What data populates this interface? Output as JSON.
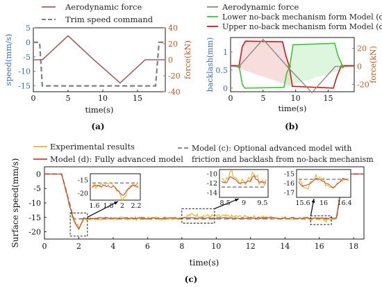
{
  "colors": {
    "speed": "#3d6db5",
    "force": "#b85a20",
    "aero": "#a06060",
    "trim": "#7f7f7f",
    "gray_model": "#8a8a8a",
    "green": "#38c838",
    "red": "#d41414",
    "exp": "#e0b820",
    "model_d": "#c04040",
    "model_c": "#8a8a8a"
  },
  "chart_data": [
    {
      "type": "line",
      "panel": "(a)",
      "legend": [
        "Aerodynamic force",
        "Trim speed command"
      ],
      "xlabel": "time(s)",
      "ylabel_left": "speed(mm/s)",
      "ylabel_right": "force(kN)",
      "xlim": [
        0,
        19
      ],
      "xticks": [
        "0",
        "5",
        "10",
        "15"
      ],
      "ylim_left": [
        -17,
        5
      ],
      "yticks_left": [
        "5",
        "0",
        "-5",
        "-10",
        "-15"
      ],
      "ylim_right": [
        -40,
        40
      ],
      "yticks_right": [
        "40",
        "20",
        "0",
        "-20",
        "-40"
      ],
      "series": [
        {
          "name": "Aerodynamic force",
          "axis": "right",
          "x": [
            0,
            1.3,
            5,
            8.7,
            12.5,
            16.1,
            17.5,
            19
          ],
          "y": [
            0,
            0,
            30,
            0,
            -29,
            0,
            0,
            0
          ]
        },
        {
          "name": "Trim speed command",
          "axis": "left",
          "x": [
            0,
            0.9,
            1.3,
            17.6,
            18.1,
            19
          ],
          "y": [
            0,
            0,
            -15,
            -15,
            0,
            0
          ]
        }
      ]
    },
    {
      "type": "line",
      "panel": "(b)",
      "legend": [
        "Aerodynamic force",
        "Lower no-back mechanism form Model (d)",
        "Upper no-back mechanism form Model (d)"
      ],
      "xlabel": "time(s)",
      "ylabel_left": "backlash(mm)",
      "ylabel_right": "force(kN)",
      "xlim": [
        0,
        19
      ],
      "xticks": [
        "0",
        "5",
        "10",
        "15"
      ],
      "ylim_left": [
        -0.1,
        1.4
      ],
      "yticks_left": [
        "1",
        "0.5",
        "0"
      ],
      "ylim_right": [
        -28,
        32
      ],
      "yticks_right": [
        "20",
        "0",
        "-20"
      ],
      "series": [
        {
          "name": "Aerodynamic force",
          "axis": "right",
          "x": [
            0,
            1.3,
            5,
            8.7,
            12.5,
            16.1,
            19
          ],
          "y": [
            0,
            0,
            30,
            0,
            -29,
            0,
            0
          ]
        },
        {
          "name": "Lower no-back mechanism form Model (d)",
          "axis": "left",
          "x": [
            0,
            1.3,
            1.8,
            2.2,
            8.2,
            8.6,
            9.1,
            9.6,
            16.0,
            16.5,
            17.2,
            19
          ],
          "y": [
            0.62,
            0.62,
            0.1,
            0.0,
            0.02,
            0.4,
            0.62,
            1.2,
            1.24,
            0.9,
            0.62,
            0.62
          ]
        },
        {
          "name": "Upper no-back mechanism form Model (d)",
          "axis": "left",
          "x": [
            0,
            1.3,
            1.8,
            2.3,
            8.0,
            8.5,
            9.0,
            9.5,
            15.8,
            16.3,
            17.0,
            19
          ],
          "y": [
            0.62,
            0.62,
            1.15,
            1.3,
            1.28,
            0.9,
            0.62,
            0.05,
            0.0,
            0.3,
            0.62,
            0.62
          ]
        }
      ]
    },
    {
      "type": "line",
      "panel": "(c)",
      "legend": [
        "Experimental results",
        "Model (d): Fully advanced model",
        "Model (c): Optional advanced model with friction and backlash from no-back mechanism"
      ],
      "xlabel": "time(s)",
      "ylabel": "Surface speed(mm/s)",
      "xlim": [
        0,
        18.6
      ],
      "xticks": [
        "0",
        "2",
        "4",
        "6",
        "8",
        "10",
        "12",
        "14",
        "16",
        "18"
      ],
      "ylim": [
        -22.5,
        2.5
      ],
      "yticks": [
        "0",
        "-5",
        "-10",
        "-15",
        "-20"
      ],
      "series": [
        {
          "name": "Experimental results",
          "x": [
            0,
            1.0,
            1.6,
            2.0,
            2.3,
            8.0,
            8.6,
            9.0,
            9.5,
            16.0,
            16.4,
            17.0,
            17.4,
            18.6
          ],
          "y": [
            0,
            0,
            -14.5,
            -18.5,
            -15.5,
            -15.2,
            -14,
            -14.5,
            -14.5,
            -15.5,
            -16.2,
            -15,
            0,
            0
          ]
        },
        {
          "name": "Model (d): Fully advanced model",
          "x": [
            0,
            1.0,
            1.7,
            2.0,
            2.3,
            17.0,
            17.4,
            18.6
          ],
          "y": [
            0,
            0,
            -16,
            -19,
            -15.3,
            -15.2,
            0,
            0
          ]
        },
        {
          "name": "Model (c): Optional advanced model with friction and backlash from no-back mechanism",
          "x": [
            0,
            1.0,
            1.7,
            17.0,
            17.4,
            18.6
          ],
          "y": [
            0,
            0,
            -15.5,
            -15.5,
            0,
            0
          ]
        }
      ],
      "insets": [
        {
          "xticks": [
            "1.6",
            "1.8",
            "2",
            "2.2"
          ],
          "yticks": [
            "-15",
            "-20"
          ]
        },
        {
          "xticks": [
            "8.5",
            "9",
            "9.5"
          ],
          "yticks": [
            "-10",
            "-12",
            "-14"
          ]
        },
        {
          "xticks": [
            "15.6",
            "16",
            "16.4"
          ],
          "yticks": [
            "-15",
            "-16",
            "-17"
          ]
        }
      ]
    }
  ],
  "panel_labels": {
    "a": "(a)",
    "b": "(b)",
    "c": "(c)"
  }
}
